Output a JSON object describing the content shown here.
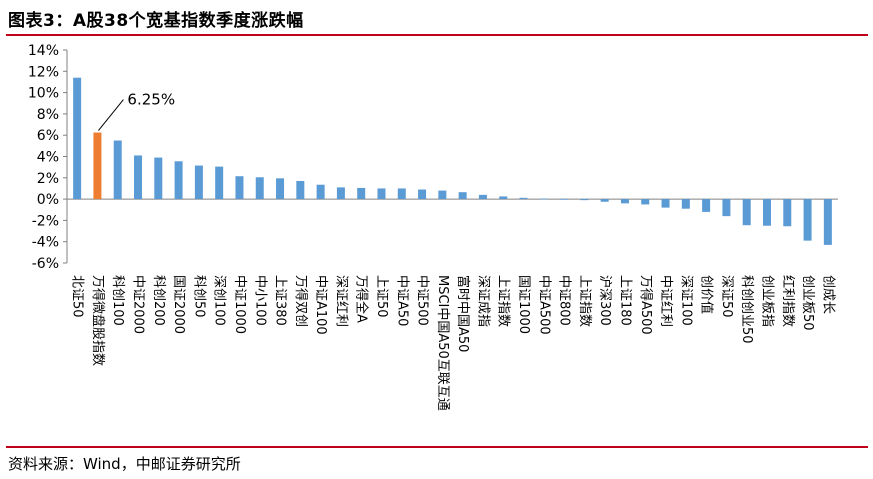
{
  "header": {
    "title": "图表3：A股38个宽基指数季度涨跌幅"
  },
  "footer": {
    "source": "资料来源：Wind，中邮证券研究所"
  },
  "colors": {
    "accent_rule": "#c0001a",
    "bar": "#5b9bd5",
    "highlight_bar": "#ed7d31"
  },
  "chart_data": {
    "type": "bar",
    "categories": [
      "北证50",
      "万得微盘股指数",
      "科创100",
      "中证2000",
      "科创200",
      "国证2000",
      "科创50",
      "深创100",
      "中证1000",
      "中小100",
      "上证380",
      "万得双创",
      "中证A100",
      "深证红利",
      "万得全A",
      "上证50",
      "中证A50",
      "中证500",
      "MSCI中国A50互联互通",
      "富时中国A50",
      "深证成指",
      "上证指数",
      "国证1000",
      "中证A500",
      "中证800",
      "上证指数",
      "沪深300",
      "上证180",
      "万得A500",
      "中证红利",
      "深证100",
      "创价值",
      "深证50",
      "科创创业50",
      "创业板指",
      "红利指数",
      "创业板50",
      "创成长"
    ],
    "values": [
      11.4,
      6.25,
      5.5,
      4.1,
      3.9,
      3.55,
      3.15,
      3.05,
      2.15,
      2.05,
      1.95,
      1.7,
      1.35,
      1.1,
      1.05,
      1.0,
      1.0,
      0.9,
      0.8,
      0.65,
      0.4,
      0.25,
      0.12,
      0.05,
      0.02,
      -0.1,
      -0.25,
      -0.4,
      -0.5,
      -0.8,
      -0.9,
      -1.2,
      -1.6,
      -2.45,
      -2.5,
      -2.55,
      -3.9,
      -4.3
    ],
    "highlight_index": 1,
    "annotation": "6.25%",
    "ylim": [
      -6,
      14
    ],
    "yticks": [
      "14%",
      "12%",
      "10%",
      "8%",
      "6%",
      "4%",
      "2%",
      "0%",
      "-2%",
      "-4%",
      "-6%"
    ],
    "grid": false,
    "legend": false
  }
}
